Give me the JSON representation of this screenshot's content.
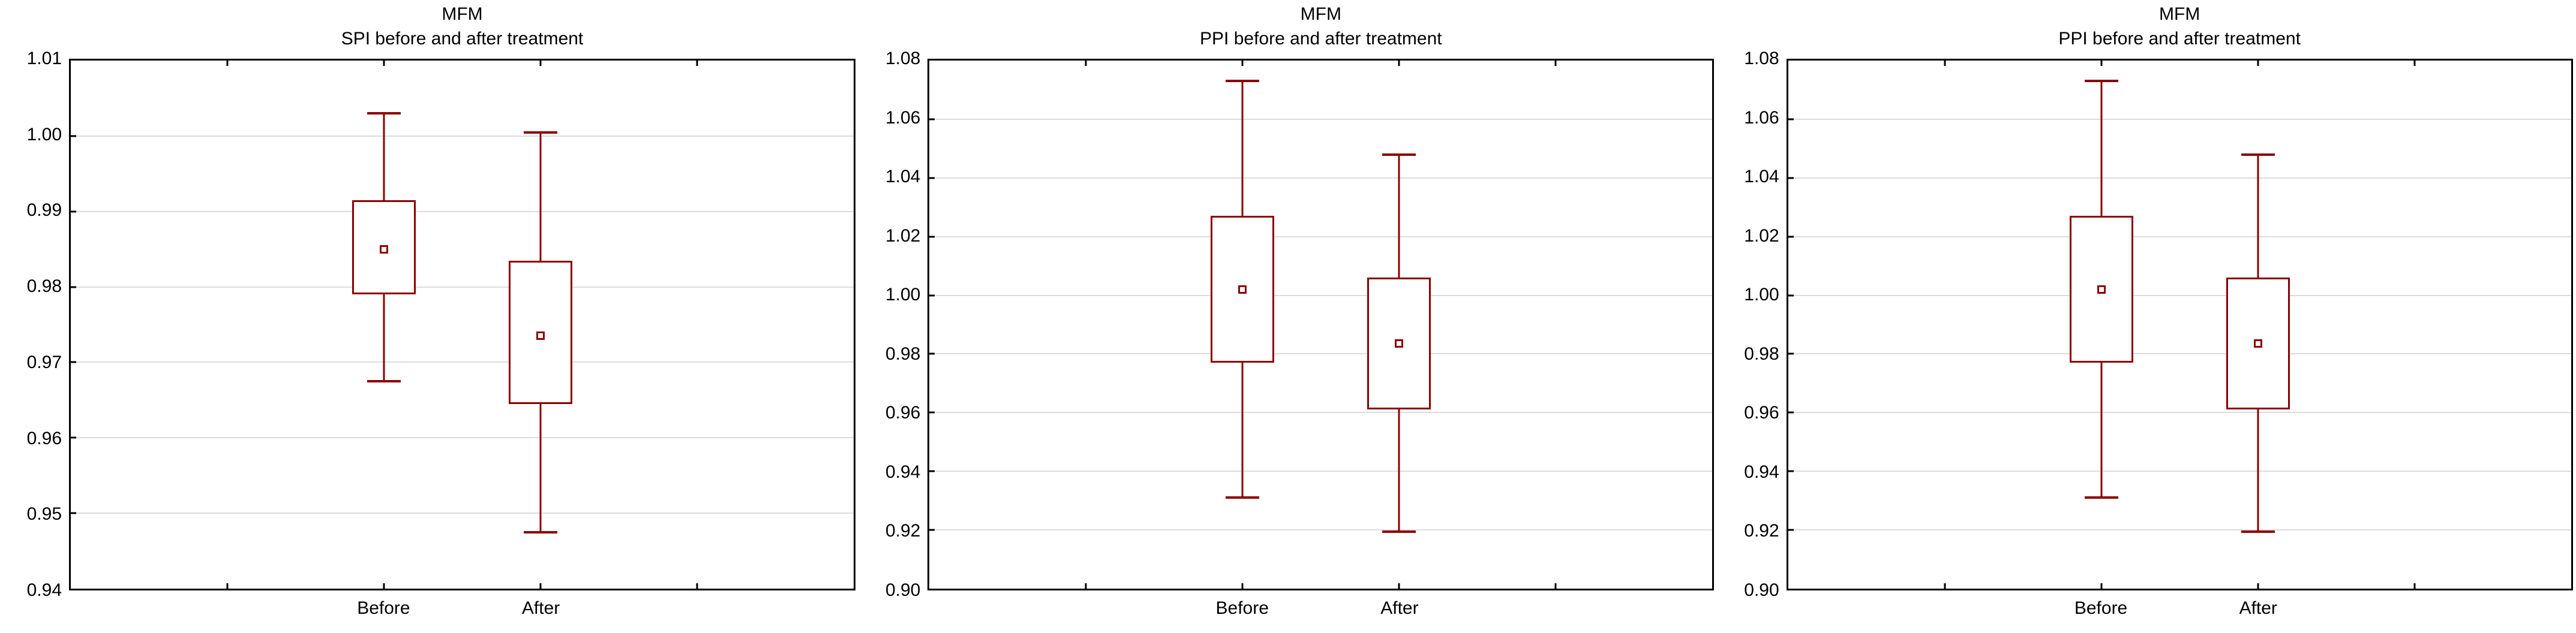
{
  "page": {
    "background": "#FFFFFF"
  },
  "styles": {
    "box_color": "#8B0000",
    "grid_color": "#DCDCDC",
    "frame_color": "#000000",
    "text_color": "#000000"
  },
  "chart_data": [
    {
      "type": "box",
      "title": "MFM",
      "subtitle": "SPI before and after treatment",
      "categories": [
        "Before",
        "After"
      ],
      "ylim": [
        0.94,
        1.01
      ],
      "ytick_step": 0.01,
      "grid": true,
      "legend_position": "none",
      "series": [
        {
          "name": "Before",
          "whisker_low": 0.9675,
          "q1": 0.979,
          "mean": 0.985,
          "q3": 0.9915,
          "whisker_high": 1.003
        },
        {
          "name": "After",
          "whisker_low": 0.9475,
          "q1": 0.9645,
          "mean": 0.9735,
          "q3": 0.9835,
          "whisker_high": 1.0005
        }
      ]
    },
    {
      "type": "box",
      "title": "MFM",
      "subtitle": "PPI before and after treatment",
      "categories": [
        "Before",
        "After"
      ],
      "ylim": [
        0.9,
        1.08
      ],
      "ytick_step": 0.02,
      "grid": true,
      "legend_position": "none",
      "series": [
        {
          "name": "Before",
          "whisker_low": 0.931,
          "q1": 0.977,
          "mean": 1.002,
          "q3": 1.027,
          "whisker_high": 1.073
        },
        {
          "name": "After",
          "whisker_low": 0.9195,
          "q1": 0.961,
          "mean": 0.9835,
          "q3": 1.006,
          "whisker_high": 1.048
        }
      ]
    },
    {
      "type": "box",
      "title": "MFM",
      "subtitle": "PPI before and after treatment",
      "categories": [
        "Before",
        "After"
      ],
      "ylim": [
        0.9,
        1.08
      ],
      "ytick_step": 0.02,
      "grid": true,
      "legend_position": "none",
      "series": [
        {
          "name": "Before",
          "whisker_low": 0.931,
          "q1": 0.977,
          "mean": 1.002,
          "q3": 1.027,
          "whisker_high": 1.073
        },
        {
          "name": "After",
          "whisker_low": 0.9195,
          "q1": 0.961,
          "mean": 0.9835,
          "q3": 1.006,
          "whisker_high": 1.048
        }
      ]
    }
  ]
}
